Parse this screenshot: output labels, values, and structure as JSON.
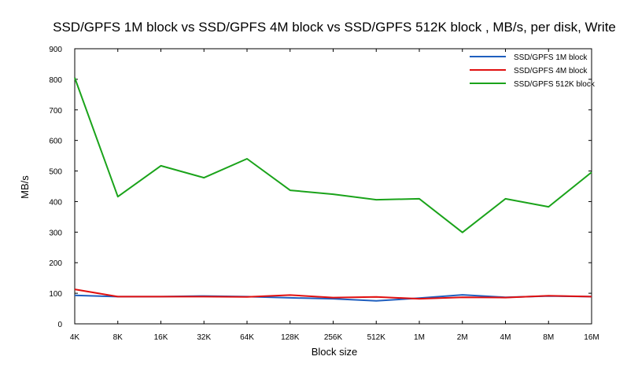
{
  "chart_data": {
    "type": "line",
    "title": "SSD/GPFS 1M block vs SSD/GPFS 4M block vs SSD/GPFS 512K block , MB/s, per disk, Write",
    "xlabel": "Block size",
    "ylabel": "MB/s",
    "categories": [
      "4K",
      "8K",
      "16K",
      "32K",
      "64K",
      "128K",
      "256K",
      "512K",
      "1M",
      "2M",
      "4M",
      "8M",
      "16M"
    ],
    "ylim": [
      0,
      900
    ],
    "yticks": [
      0,
      100,
      200,
      300,
      400,
      500,
      600,
      700,
      800,
      900
    ],
    "grid": false,
    "legend_position": "top-right",
    "series": [
      {
        "name": "SSD/GPFS 1M block",
        "color": "#1f5fbf",
        "values": [
          93,
          89,
          89,
          91,
          89,
          85,
          82,
          75,
          84,
          95,
          87,
          91,
          89
        ]
      },
      {
        "name": "SSD/GPFS 4M block",
        "color": "#e01010",
        "values": [
          113,
          89,
          89,
          89,
          88,
          94,
          86,
          88,
          82,
          87,
          86,
          92,
          89
        ]
      },
      {
        "name": "SSD/GPFS 512K block",
        "color": "#1aa31a",
        "values": [
          805,
          416,
          517,
          478,
          540,
          437,
          424,
          406,
          409,
          299,
          409,
          383,
          496
        ]
      }
    ]
  }
}
